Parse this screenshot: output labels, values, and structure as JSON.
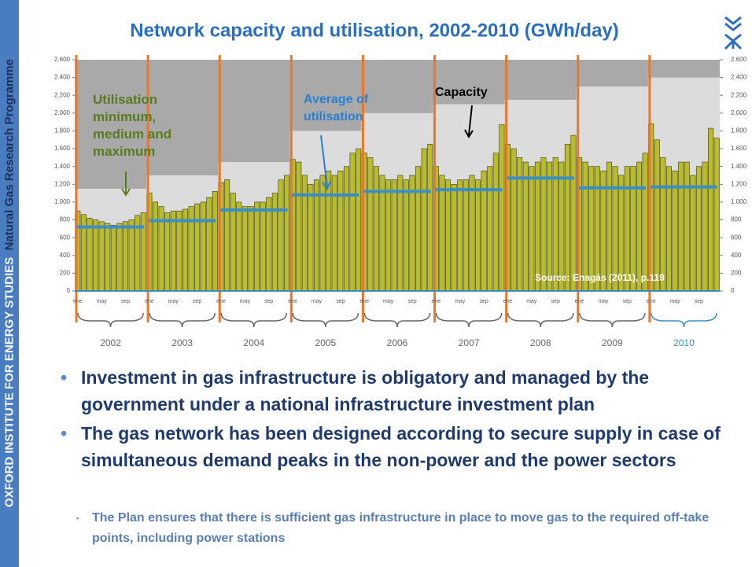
{
  "header": {
    "sidebar_institute": "OXFORD INSTITUTE FOR ENERGY STUDIES",
    "sidebar_programme": "Natural Gas Research Programme"
  },
  "chart_data": {
    "type": "bar",
    "title": "Network capacity and utilisation, 2002-2010 (GWh/day)",
    "categories": [
      "2002",
      "2003",
      "2004",
      "2005",
      "2006",
      "2007",
      "2008",
      "2009",
      "2010"
    ],
    "month_labels": [
      "ene",
      "may",
      "sep"
    ],
    "ylim": [
      0,
      2600
    ],
    "yticks": [
      0,
      200,
      400,
      600,
      800,
      {
        "value": 1000,
        "label": "1.000"
      },
      {
        "value": 1200,
        "label": "1.200"
      },
      {
        "value": 1400,
        "label": "1.400"
      },
      {
        "value": 1600,
        "label": "1.600"
      },
      {
        "value": 1800,
        "label": "1.800"
      },
      {
        "value": 2000,
        "label": "2.000"
      },
      {
        "value": 2200,
        "label": "2.200"
      },
      {
        "value": 2400,
        "label": "2.400"
      },
      {
        "value": 2600,
        "label": "2.600"
      }
    ],
    "series": [
      {
        "color": "#b9bc2c",
        "values": [
          [
            900,
            860,
            820,
            800,
            780,
            760,
            740,
            760,
            780,
            800,
            850,
            880
          ],
          [
            1100,
            1000,
            950,
            880,
            900,
            900,
            920,
            950,
            980,
            1000,
            1050,
            1120
          ],
          [
            1220,
            1250,
            1100,
            1000,
            950,
            950,
            1000,
            1000,
            1050,
            1100,
            1250,
            1300
          ],
          [
            1480,
            1450,
            1300,
            1200,
            1250,
            1300,
            1350,
            1300,
            1350,
            1400,
            1550,
            1600
          ],
          [
            1550,
            1500,
            1400,
            1300,
            1250,
            1250,
            1300,
            1250,
            1300,
            1400,
            1600,
            1650
          ],
          [
            1400,
            1300,
            1250,
            1200,
            1250,
            1250,
            1300,
            1250,
            1350,
            1400,
            1550,
            1870
          ],
          [
            1650,
            1600,
            1500,
            1450,
            1400,
            1450,
            1500,
            1450,
            1500,
            1450,
            1650,
            1750
          ],
          [
            1500,
            1450,
            1400,
            1400,
            1350,
            1450,
            1400,
            1300,
            1400,
            1400,
            1450,
            1550
          ],
          [
            1880,
            1700,
            1500,
            1400,
            1350,
            1450,
            1450,
            1300,
            1400,
            1450,
            1830,
            1720
          ]
        ]
      },
      {
        "color": "#3b8fc4",
        "values": [
          720,
          790,
          910,
          1080,
          1120,
          1140,
          1270,
          1160,
          1170
        ]
      },
      {
        "color": "#dcdcdc",
        "values": [
          1150,
          1300,
          1450,
          1800,
          2000,
          2100,
          2150,
          2300,
          2400
        ]
      }
    ],
    "annotations": [
      "Utilisation minimum, medium and maximum",
      "Average of utilisation",
      "Capacity",
      "Source: Enagás (2011), p.119"
    ]
  },
  "bullets": [
    {
      "text": "Investment in gas infrastructure is obligatory and managed by the government under a national infrastructure investment plan"
    },
    {
      "text": "The gas network has been designed according to secure supply in case of simultaneous demand peaks in the non-power and the power sectors",
      "sub": [
        "The Plan ensures that there is sufficient gas infrastructure in place to move gas to the required off-take points, including power stations"
      ]
    }
  ]
}
